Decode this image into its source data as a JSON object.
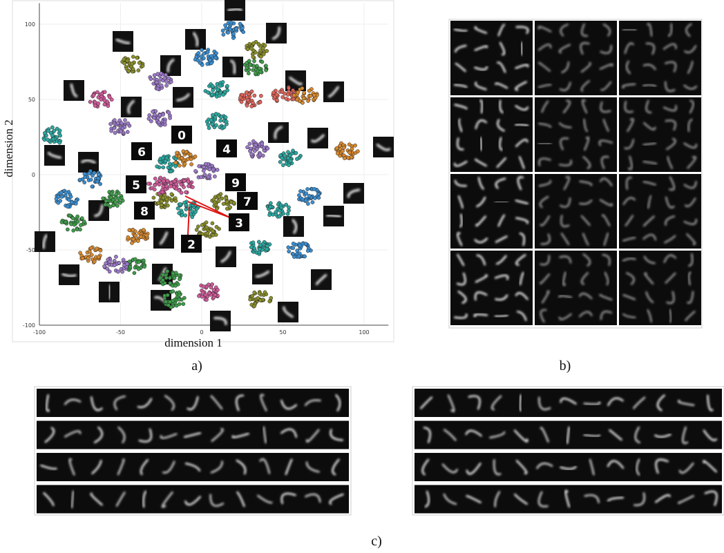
{
  "chart_data": {
    "type": "scatter",
    "xlabel": "dimension 1",
    "ylabel": "dimension 2",
    "xlim": [
      -100,
      115
    ],
    "ylim": [
      -100,
      114
    ],
    "xticks": [
      -100,
      -50,
      0,
      50,
      100
    ],
    "yticks": [
      -100,
      -50,
      0,
      50,
      100
    ],
    "grid": true,
    "series": [
      {
        "color": "#3a8ed1",
        "x": [
          19,
          3,
          -68,
          -83,
          66,
          60
        ],
        "values": [
          96,
          78,
          -3,
          -16,
          -14,
          -50
        ]
      },
      {
        "color": "#8a8f2a",
        "x": [
          34,
          -43,
          13,
          -23,
          4,
          36
        ],
        "values": [
          83,
          73,
          -18,
          -17,
          -37,
          -83
        ]
      },
      {
        "color": "#3f9c4a",
        "x": [
          33,
          -55,
          -79,
          -40,
          -19,
          -17
        ],
        "values": [
          71,
          -16,
          -32,
          -60,
          -69,
          -83
        ]
      },
      {
        "color": "#9b79c8",
        "x": [
          -26,
          -51,
          -26,
          34,
          3,
          -53
        ],
        "values": [
          62,
          32,
          38,
          17,
          2,
          -60
        ]
      },
      {
        "color": "#d05a9a",
        "x": [
          -62,
          -12,
          -26,
          4
        ],
        "values": [
          50,
          -7,
          -7,
          -78
        ]
      },
      {
        "color": "#2aa8a0",
        "x": [
          9,
          9,
          -91,
          54,
          -21,
          -8,
          47,
          36
        ],
        "values": [
          57,
          35,
          26,
          11,
          7,
          -23,
          -23,
          -48
        ]
      },
      {
        "color": "#e0645a",
        "x": [
          30,
          51
        ],
        "values": [
          50,
          53
        ]
      },
      {
        "color": "#d8892e",
        "x": [
          64,
          89,
          -11,
          -40,
          -68
        ],
        "values": [
          53,
          16,
          11,
          -41,
          -53
        ]
      }
    ],
    "annotations": [
      "0",
      "6",
      "4",
      "9",
      "7",
      "3",
      "2",
      "8",
      "5"
    ]
  },
  "panels": {
    "a": "a)",
    "b": "b)",
    "c": "c)"
  }
}
